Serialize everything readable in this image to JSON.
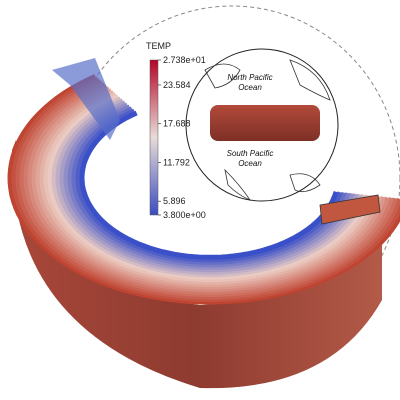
{
  "colorbar": {
    "title": "TEMP",
    "ticks": [
      {
        "value": 27.38,
        "label": "2.738e+01"
      },
      23.584,
      17.688,
      11.792,
      5.896,
      {
        "value": 3.8,
        "label": "3.800e+00"
      }
    ]
  },
  "map_labels": [
    {
      "lines": [
        "North Pacific",
        "Ocean"
      ]
    },
    {
      "lines": [
        "South Pacific",
        "Ocean"
      ]
    }
  ]
}
